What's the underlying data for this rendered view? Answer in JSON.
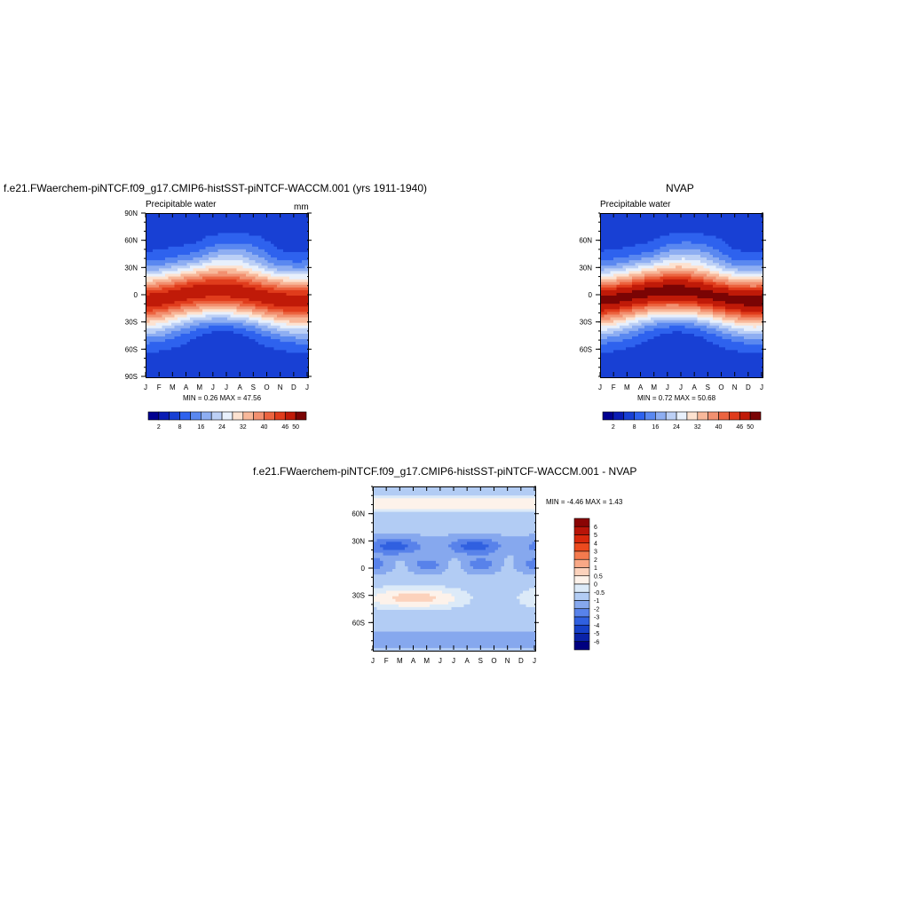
{
  "panels": {
    "p1": {
      "title": "f.e21.FWaerchem-piNTCF.f09_g17.CMIP6-histSST-piNTCF-WACCM.001 (yrs 1911-1940)",
      "field": "Precipitable water",
      "units": "mm",
      "stats": "MIN =   0.26 MAX =   47.56"
    },
    "p2": {
      "title": "NVAP",
      "field": "Precipitable water",
      "stats": "MIN =   0.72 MAX =   50.68"
    },
    "p3": {
      "title": "f.e21.FWaerchem-piNTCF.f09_g17.CMIP6-histSST-piNTCF-WACCM.001 - NVAP",
      "stats": "MIN =  -4.46 MAX =    1.43"
    }
  },
  "chart_data": [
    {
      "type": "heatmap",
      "title": "f.e21.FWaerchem-piNTCF.f09_g17.CMIP6-histSST-piNTCF-WACCM.001 (yrs 1911-1940)",
      "subtitle": "Precipitable water",
      "units": "mm",
      "x_ticks": [
        "J",
        "F",
        "M",
        "A",
        "M",
        "J",
        "J",
        "A",
        "S",
        "O",
        "N",
        "D",
        "J"
      ],
      "y_ticks": [
        "90N",
        "60N",
        "30N",
        "0",
        "30S",
        "60S",
        "90S"
      ],
      "y_tick_values": [
        90,
        60,
        30,
        0,
        -30,
        -60,
        -90
      ],
      "ylim": [
        -90,
        90
      ],
      "min": 0.26,
      "max": 47.56,
      "colorbar_labels": [
        "2",
        "8",
        "16",
        "24",
        "32",
        "40",
        "46",
        "50"
      ],
      "colors": [
        "#000090",
        "#0a1cb4",
        "#1840d4",
        "#2e62ee",
        "#5a88f0",
        "#8eaef2",
        "#bcd0f6",
        "#e8f0fc",
        "#fde2d0",
        "#f8b89a",
        "#f29070",
        "#ec6440",
        "#e03c1c",
        "#c01a08",
        "#7a0404"
      ]
    },
    {
      "type": "heatmap",
      "title": "NVAP",
      "subtitle": "Precipitable water",
      "x_ticks": [
        "J",
        "F",
        "M",
        "A",
        "M",
        "J",
        "J",
        "A",
        "S",
        "O",
        "N",
        "D",
        "J"
      ],
      "y_ticks": [
        "60N",
        "30N",
        "0",
        "30S",
        "60S"
      ],
      "y_tick_values": [
        60,
        30,
        0,
        -30,
        -60
      ],
      "ylim": [
        -90,
        90
      ],
      "min": 0.72,
      "max": 50.68,
      "colorbar_labels": [
        "2",
        "8",
        "16",
        "24",
        "32",
        "40",
        "46",
        "50"
      ],
      "colors": [
        "#000090",
        "#0a1cb4",
        "#1840d4",
        "#2e62ee",
        "#5a88f0",
        "#8eaef2",
        "#bcd0f6",
        "#e8f0fc",
        "#fde2d0",
        "#f8b89a",
        "#f29070",
        "#ec6440",
        "#e03c1c",
        "#c01a08",
        "#7a0404"
      ]
    },
    {
      "type": "heatmap",
      "title": "f.e21.FWaerchem-piNTCF.f09_g17.CMIP6-histSST-piNTCF-WACCM.001 - NVAP",
      "x_ticks": [
        "J",
        "F",
        "M",
        "A",
        "M",
        "J",
        "J",
        "A",
        "S",
        "O",
        "N",
        "D",
        "J"
      ],
      "y_ticks": [
        "60N",
        "30N",
        "0",
        "30S",
        "60S"
      ],
      "y_tick_values": [
        60,
        30,
        0,
        -30,
        -60
      ],
      "ylim": [
        -90,
        90
      ],
      "min": -4.46,
      "max": 1.43,
      "colorbar_labels": [
        "6",
        "5",
        "4",
        "3",
        "2",
        "1",
        "0.5",
        "0",
        "-0.5",
        "-1",
        "-2",
        "-3",
        "-4",
        "-5",
        "-6"
      ],
      "colors": [
        "#8a0404",
        "#b81408",
        "#d8280c",
        "#ec4a1e",
        "#f47a4e",
        "#f8a886",
        "#fcd2bc",
        "#fdf2ea",
        "#dceaf8",
        "#b2ccf4",
        "#86a8ee",
        "#5882ea",
        "#3060e0",
        "#1640c8",
        "#0a22a8",
        "#000080"
      ]
    }
  ]
}
